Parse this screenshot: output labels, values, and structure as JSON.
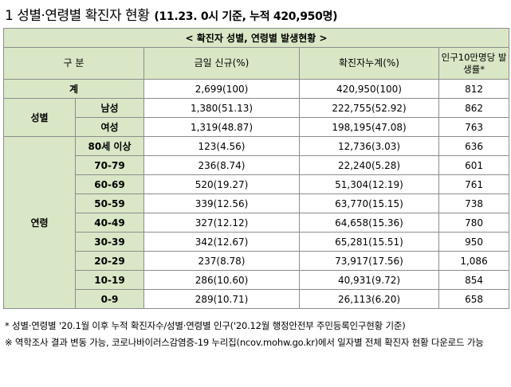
{
  "title": {
    "main": "1  성별·연령별 확진자 현황",
    "sub": "(11.23. 0시 기준, 누적 420,950명)"
  },
  "table": {
    "banner": "< 확진자 성별, 연령별 발생현황 >",
    "headers": [
      "구 분",
      "금일 신규(%)",
      "확진자누계(%)",
      "인구10만명당 발생률*"
    ],
    "total": {
      "label": "계",
      "new": "2,699(100)",
      "cumulative": "420,950(100)",
      "rate": "812"
    },
    "sex": {
      "group_label": "성별",
      "rows": [
        {
          "label": "남성",
          "new": "1,380(51.13)",
          "cumulative": "222,755(52.92)",
          "rate": "862"
        },
        {
          "label": "여성",
          "new": "1,319(48.87)",
          "cumulative": "198,195(47.08)",
          "rate": "763"
        }
      ]
    },
    "age": {
      "group_label": "연령",
      "rows": [
        {
          "label": "80세 이상",
          "new": "123(4.56)",
          "cumulative": "12,736(3.03)",
          "rate": "636"
        },
        {
          "label": "70-79",
          "new": "236(8.74)",
          "cumulative": "22,240(5.28)",
          "rate": "601"
        },
        {
          "label": "60-69",
          "new": "520(19.27)",
          "cumulative": "51,304(12.19)",
          "rate": "761"
        },
        {
          "label": "50-59",
          "new": "339(12.56)",
          "cumulative": "63,770(15.15)",
          "rate": "738"
        },
        {
          "label": "40-49",
          "new": "327(12.12)",
          "cumulative": "64,658(15.36)",
          "rate": "780"
        },
        {
          "label": "30-39",
          "new": "342(12.67)",
          "cumulative": "65,281(15.51)",
          "rate": "950"
        },
        {
          "label": "20-29",
          "new": "237(8.78)",
          "cumulative": "73,917(17.56)",
          "rate": "1,086"
        },
        {
          "label": "10-19",
          "new": "286(10.60)",
          "cumulative": "40,931(9.72)",
          "rate": "854"
        },
        {
          "label": "0-9",
          "new": "289(10.71)",
          "cumulative": "26,113(6.20)",
          "rate": "658"
        }
      ]
    }
  },
  "notes": [
    "* 성별·연령별 '20.1월 이후 누적 확진자수/성별·연령별 인구('20.12월 행정안전부 주민등록인구현황 기준)",
    "※ 역학조사 결과 변동 가능, 코로나바이러스감염증-19 누리집(ncov.mohw.go.kr)에서 일자별 전체 확진자 현황 다운로드 가능"
  ]
}
